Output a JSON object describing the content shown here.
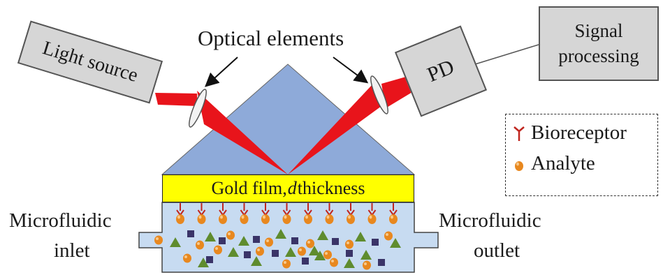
{
  "labels": {
    "optical_elements": "Optical elements",
    "light_source": "Light source",
    "pd": "PD",
    "signal_line1": "Signal",
    "signal_line2": "processing",
    "gold_film_prefix": "Gold film, ",
    "gold_film_var": "d",
    "gold_film_suffix": " thickness",
    "inlet_line1": "Microfluidic",
    "inlet_line2": "inlet",
    "outlet_line1": "Microfluidic",
    "outlet_line2": "outlet"
  },
  "legend": {
    "bioreceptor": "Bioreceptor",
    "analyte": "Analyte"
  },
  "colors": {
    "prism": "#8eaad9",
    "beam": "#e8141b",
    "gold": "#ffff00",
    "channel": "#c7dbf1",
    "bioreceptor": "#c0251e",
    "analyte": "#e8881f",
    "triangle": "#5f8c2e",
    "square": "#3a3468",
    "box": "#d6d6d6"
  },
  "icons": [
    "bioreceptor-icon",
    "analyte-icon",
    "triangle-particle",
    "square-particle",
    "lens-icon",
    "arrow-icon"
  ]
}
